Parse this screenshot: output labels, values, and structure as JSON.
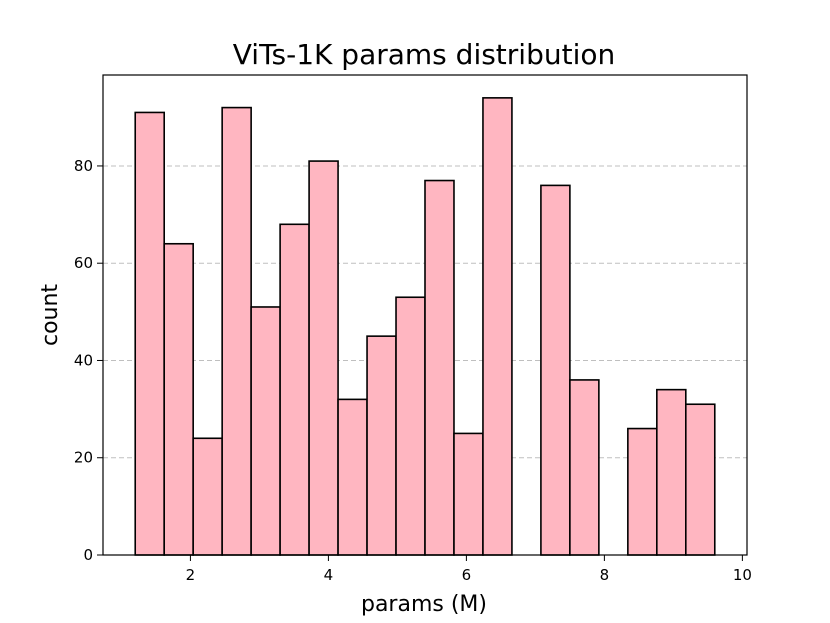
{
  "chart_data": {
    "type": "bar",
    "title": "ViTs-1K params distribution",
    "xlabel": "params (M)",
    "ylabel": "count",
    "xlim": [
      0.733,
      10.067
    ],
    "ylim": [
      0,
      98.7
    ],
    "xticks": [
      2,
      4,
      6,
      8,
      10
    ],
    "yticks": [
      0,
      20,
      40,
      60,
      80
    ],
    "grid": "y-dashed",
    "bin_edges": [
      1.2,
      1.62,
      2.04,
      2.46,
      2.88,
      3.3,
      3.72,
      4.14,
      4.56,
      4.98,
      5.4,
      5.82,
      6.24,
      6.66,
      7.08,
      7.5,
      7.92,
      8.34,
      8.76,
      9.18,
      9.6
    ],
    "values": [
      91,
      64,
      24,
      92,
      51,
      68,
      81,
      32,
      45,
      53,
      77,
      25,
      94,
      0,
      76,
      36,
      0,
      26,
      34,
      31
    ],
    "colors": {
      "bar_fill": "#ffb6c1",
      "bar_edge": "#000000"
    }
  }
}
